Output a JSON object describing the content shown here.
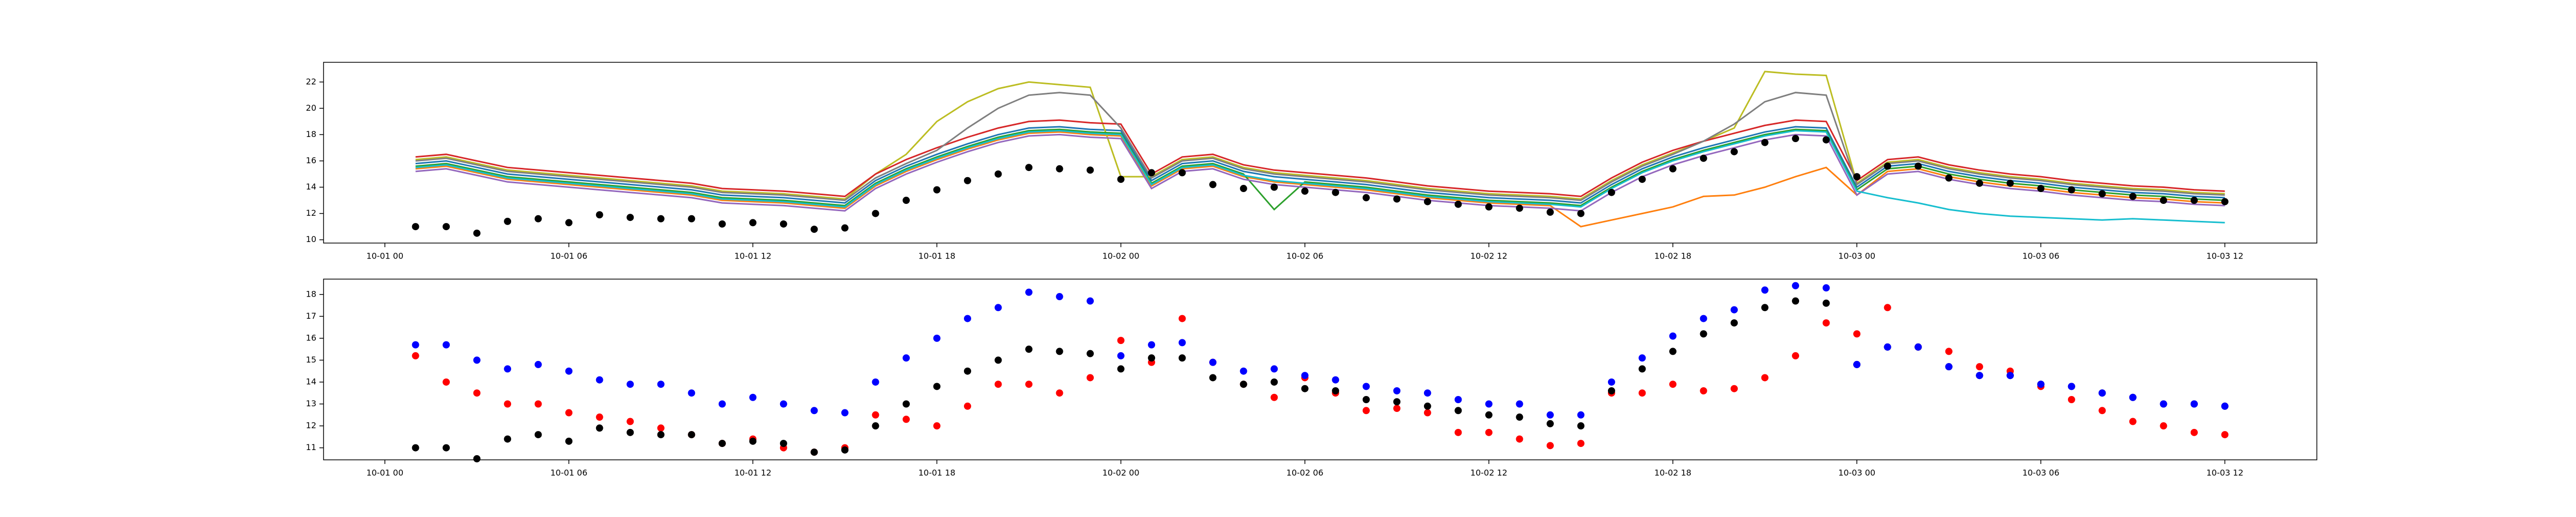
{
  "chart_data": [
    {
      "type": "line",
      "x": [
        "10-01 01",
        "10-01 02",
        "10-01 03",
        "10-01 04",
        "10-01 05",
        "10-01 06",
        "10-01 07",
        "10-01 08",
        "10-01 09",
        "10-01 10",
        "10-01 11",
        "10-01 12",
        "10-01 13",
        "10-01 14",
        "10-01 15",
        "10-01 16",
        "10-01 17",
        "10-01 18",
        "10-01 19",
        "10-01 20",
        "10-01 21",
        "10-01 22",
        "10-01 23",
        "10-02 00",
        "10-02 01",
        "10-02 02",
        "10-02 03",
        "10-02 04",
        "10-02 05",
        "10-02 06",
        "10-02 07",
        "10-02 08",
        "10-02 09",
        "10-02 10",
        "10-02 11",
        "10-02 12",
        "10-02 13",
        "10-02 14",
        "10-02 15",
        "10-02 16",
        "10-02 17",
        "10-02 18",
        "10-02 19",
        "10-02 20",
        "10-02 21",
        "10-02 22",
        "10-02 23",
        "10-03 00",
        "10-03 01",
        "10-03 02",
        "10-03 03",
        "10-03 04",
        "10-03 05",
        "10-03 06",
        "10-03 07",
        "10-03 08",
        "10-03 09",
        "10-03 10",
        "10-03 11",
        "10-03 12"
      ],
      "xlim": [
        "09-30 22",
        "10-03 15"
      ],
      "xticks": [
        "10-01 00",
        "10-01 06",
        "10-01 12",
        "10-01 18",
        "10-02 00",
        "10-02 06",
        "10-02 12",
        "10-02 18",
        "10-03 00",
        "10-03 06",
        "10-03 12"
      ],
      "ylim": [
        9.75,
        23.5
      ],
      "yticks": [
        10,
        12,
        14,
        16,
        18,
        20,
        22
      ],
      "series": [
        {
          "type": "line",
          "color": "#1f77b4",
          "values": [
            15.8,
            16.0,
            15.5,
            15.0,
            14.8,
            14.6,
            14.4,
            14.2,
            14.0,
            13.8,
            13.4,
            13.3,
            13.2,
            13.0,
            12.8,
            14.5,
            15.6,
            16.5,
            17.3,
            18.0,
            18.5,
            18.6,
            18.4,
            18.3,
            14.5,
            15.8,
            16.0,
            15.2,
            14.8,
            14.6,
            14.4,
            14.2,
            13.9,
            13.6,
            13.4,
            13.2,
            13.1,
            13.0,
            12.8,
            14.2,
            15.4,
            16.3,
            17.0,
            17.6,
            18.2,
            18.6,
            18.5,
            14.0,
            15.6,
            15.8,
            15.2,
            14.8,
            14.5,
            14.3,
            14.0,
            13.8,
            13.6,
            13.5,
            13.3,
            13.2
          ]
        },
        {
          "type": "line",
          "color": "#ff7f0e",
          "values": [
            15.4,
            15.6,
            15.1,
            14.6,
            14.4,
            14.2,
            14.0,
            13.8,
            13.6,
            13.4,
            13.0,
            12.9,
            12.8,
            12.6,
            12.4,
            14.1,
            15.2,
            16.1,
            16.9,
            17.6,
            18.1,
            18.2,
            18.0,
            17.9,
            14.1,
            15.4,
            15.6,
            14.8,
            14.4,
            14.2,
            14.0,
            13.8,
            13.5,
            13.2,
            13.0,
            12.8,
            12.7,
            12.6,
            11.0,
            11.5,
            12.0,
            12.5,
            13.3,
            13.4,
            14.0,
            14.8,
            15.5,
            13.4,
            15.2,
            15.4,
            14.8,
            14.4,
            14.1,
            13.9,
            13.6,
            13.4,
            13.2,
            13.1,
            12.9,
            12.8
          ]
        },
        {
          "type": "line",
          "color": "#bcbd22",
          "values": [
            16.1,
            16.3,
            15.8,
            15.3,
            15.1,
            14.9,
            14.7,
            14.5,
            14.3,
            14.1,
            13.7,
            13.6,
            13.5,
            13.3,
            13.1,
            15.0,
            16.5,
            19.0,
            20.5,
            21.5,
            22.0,
            21.8,
            21.6,
            14.8,
            14.8,
            16.1,
            16.3,
            15.5,
            15.1,
            14.9,
            14.7,
            14.5,
            14.2,
            13.9,
            13.7,
            13.5,
            13.4,
            13.3,
            13.1,
            14.5,
            15.7,
            16.6,
            17.5,
            18.5,
            22.8,
            22.6,
            22.5,
            14.3,
            15.9,
            16.1,
            15.5,
            15.1,
            14.8,
            14.6,
            14.3,
            14.1,
            13.9,
            13.8,
            13.6,
            13.5
          ]
        },
        {
          "type": "line",
          "color": "#2ca02c",
          "values": [
            15.6,
            15.8,
            15.3,
            14.8,
            14.6,
            14.4,
            14.2,
            14.0,
            13.8,
            13.6,
            13.2,
            13.1,
            13.0,
            12.8,
            12.6,
            14.3,
            15.4,
            16.3,
            17.1,
            17.8,
            18.3,
            18.4,
            18.2,
            18.1,
            14.3,
            15.6,
            15.8,
            15.0,
            12.3,
            14.4,
            14.2,
            14.0,
            13.7,
            13.4,
            13.2,
            13.0,
            12.9,
            12.8,
            12.6,
            14.0,
            15.2,
            16.1,
            16.8,
            17.4,
            18.0,
            18.4,
            18.3,
            13.8,
            15.4,
            15.6,
            15.0,
            14.6,
            14.3,
            14.1,
            13.8,
            13.6,
            13.4,
            13.3,
            13.1,
            13.0
          ]
        },
        {
          "type": "line",
          "color": "#d62728",
          "values": [
            16.3,
            16.5,
            16.0,
            15.5,
            15.3,
            15.1,
            14.9,
            14.7,
            14.5,
            14.3,
            13.9,
            13.8,
            13.7,
            13.5,
            13.3,
            15.0,
            16.1,
            17.0,
            17.8,
            18.5,
            19.0,
            19.1,
            18.9,
            18.8,
            15.0,
            16.3,
            16.5,
            15.7,
            15.3,
            15.1,
            14.9,
            14.7,
            14.4,
            14.1,
            13.9,
            13.7,
            13.6,
            13.5,
            13.3,
            14.7,
            15.9,
            16.8,
            17.5,
            18.1,
            18.7,
            19.1,
            19.0,
            14.5,
            16.1,
            16.3,
            15.7,
            15.3,
            15.0,
            14.8,
            14.5,
            14.3,
            14.1,
            14.0,
            13.8,
            13.7
          ]
        },
        {
          "type": "line",
          "color": "#9467bd",
          "values": [
            15.2,
            15.4,
            14.9,
            14.4,
            14.2,
            14.0,
            13.8,
            13.6,
            13.4,
            13.2,
            12.8,
            12.7,
            12.6,
            12.4,
            12.2,
            13.9,
            15.0,
            15.9,
            16.7,
            17.4,
            17.9,
            18.0,
            17.8,
            17.7,
            13.9,
            15.2,
            15.4,
            14.6,
            14.2,
            14.0,
            13.8,
            13.6,
            13.3,
            13.0,
            12.8,
            12.6,
            12.5,
            12.4,
            12.2,
            13.6,
            14.8,
            15.7,
            16.4,
            17.0,
            17.6,
            18.0,
            17.9,
            13.4,
            15.0,
            15.2,
            14.6,
            14.2,
            13.9,
            13.7,
            13.4,
            13.2,
            13.0,
            12.9,
            12.7,
            12.6
          ]
        },
        {
          "type": "line",
          "color": "#7f7f7f",
          "values": [
            16.0,
            16.2,
            15.7,
            15.2,
            15.0,
            14.8,
            14.6,
            14.4,
            14.2,
            14.0,
            13.6,
            13.5,
            13.4,
            13.2,
            13.0,
            14.7,
            15.8,
            16.8,
            18.5,
            20.0,
            21.0,
            21.2,
            21.0,
            18.5,
            14.7,
            16.0,
            16.2,
            15.4,
            15.0,
            14.8,
            14.6,
            14.4,
            14.1,
            13.8,
            13.6,
            13.4,
            13.3,
            13.2,
            13.0,
            14.4,
            15.6,
            16.5,
            17.5,
            18.8,
            20.5,
            21.2,
            21.0,
            14.2,
            15.8,
            16.0,
            15.4,
            15.0,
            14.7,
            14.5,
            14.2,
            14.0,
            13.8,
            13.7,
            13.5,
            13.4
          ]
        },
        {
          "type": "line",
          "color": "#17becf",
          "values": [
            15.5,
            15.7,
            15.2,
            14.7,
            14.5,
            14.3,
            14.1,
            13.9,
            13.7,
            13.5,
            13.1,
            13.0,
            12.9,
            12.7,
            12.5,
            14.2,
            15.3,
            16.2,
            17.0,
            17.7,
            18.2,
            18.3,
            18.1,
            18.0,
            14.2,
            15.5,
            15.7,
            14.9,
            14.5,
            14.3,
            14.1,
            13.9,
            13.6,
            13.3,
            13.1,
            12.9,
            12.8,
            12.7,
            12.5,
            13.9,
            15.1,
            16.0,
            16.7,
            17.3,
            17.9,
            18.3,
            18.2,
            13.7,
            13.2,
            12.8,
            12.3,
            12.0,
            11.8,
            11.7,
            11.6,
            11.5,
            11.6,
            11.5,
            11.4,
            11.3
          ]
        },
        {
          "type": "scatter",
          "color": "#000000",
          "values": [
            11.0,
            11.0,
            10.5,
            11.4,
            11.6,
            11.3,
            11.9,
            11.7,
            11.6,
            11.6,
            11.2,
            11.3,
            11.2,
            10.8,
            10.9,
            12.0,
            13.0,
            13.8,
            14.5,
            15.0,
            15.5,
            15.4,
            15.3,
            14.6,
            15.1,
            15.1,
            14.2,
            13.9,
            14.0,
            13.7,
            13.6,
            13.2,
            13.1,
            12.9,
            12.7,
            12.5,
            12.4,
            12.1,
            12.0,
            13.6,
            14.6,
            15.4,
            16.2,
            16.7,
            17.4,
            17.7,
            17.6,
            14.8,
            15.6,
            15.6,
            14.7,
            14.3,
            14.3,
            13.9,
            13.8,
            13.5,
            13.3,
            13.0,
            13.0,
            12.9
          ]
        }
      ]
    },
    {
      "type": "scatter",
      "x": [
        "10-01 01",
        "10-01 02",
        "10-01 03",
        "10-01 04",
        "10-01 05",
        "10-01 06",
        "10-01 07",
        "10-01 08",
        "10-01 09",
        "10-01 10",
        "10-01 11",
        "10-01 12",
        "10-01 13",
        "10-01 14",
        "10-01 15",
        "10-01 16",
        "10-01 17",
        "10-01 18",
        "10-01 19",
        "10-01 20",
        "10-01 21",
        "10-01 22",
        "10-01 23",
        "10-02 00",
        "10-02 01",
        "10-02 02",
        "10-02 03",
        "10-02 04",
        "10-02 05",
        "10-02 06",
        "10-02 07",
        "10-02 08",
        "10-02 09",
        "10-02 10",
        "10-02 11",
        "10-02 12",
        "10-02 13",
        "10-02 14",
        "10-02 15",
        "10-02 16",
        "10-02 17",
        "10-02 18",
        "10-02 19",
        "10-02 20",
        "10-02 21",
        "10-02 22",
        "10-02 23",
        "10-03 00",
        "10-03 01",
        "10-03 02",
        "10-03 03",
        "10-03 04",
        "10-03 05",
        "10-03 06",
        "10-03 07",
        "10-03 08",
        "10-03 09",
        "10-03 10",
        "10-03 11",
        "10-03 12"
      ],
      "xlim": [
        "09-30 22",
        "10-03 15"
      ],
      "xticks": [
        "10-01 00",
        "10-01 06",
        "10-01 12",
        "10-01 18",
        "10-02 00",
        "10-02 06",
        "10-02 12",
        "10-02 18",
        "10-03 00",
        "10-03 06",
        "10-03 12"
      ],
      "ylim": [
        10.45,
        18.7
      ],
      "yticks": [
        11,
        12,
        13,
        14,
        15,
        16,
        17,
        18
      ],
      "series": [
        {
          "type": "scatter",
          "color": "#ff0000",
          "values": [
            15.2,
            14.0,
            13.5,
            13.0,
            13.0,
            12.6,
            12.4,
            12.2,
            11.9,
            11.6,
            11.2,
            11.4,
            11.0,
            10.8,
            11.0,
            12.5,
            12.3,
            12.0,
            12.9,
            13.9,
            13.9,
            13.5,
            14.2,
            15.9,
            14.9,
            16.9,
            14.9,
            13.9,
            13.3,
            14.2,
            13.5,
            12.7,
            12.8,
            12.6,
            11.7,
            11.7,
            11.4,
            11.1,
            11.2,
            13.5,
            13.5,
            13.9,
            13.6,
            13.7,
            14.2,
            15.2,
            16.7,
            16.2,
            17.4,
            15.6,
            15.4,
            14.7,
            14.5,
            13.8,
            13.2,
            12.7,
            12.2,
            12.0,
            11.7,
            11.6
          ]
        },
        {
          "type": "scatter",
          "color": "#000000",
          "values": [
            11.0,
            11.0,
            10.5,
            11.4,
            11.6,
            11.3,
            11.9,
            11.7,
            11.6,
            11.6,
            11.2,
            11.3,
            11.2,
            10.8,
            10.9,
            12.0,
            13.0,
            13.8,
            14.5,
            15.0,
            15.5,
            15.4,
            15.3,
            14.6,
            15.1,
            15.1,
            14.2,
            13.9,
            14.0,
            13.7,
            13.6,
            13.2,
            13.1,
            12.9,
            12.7,
            12.5,
            12.4,
            12.1,
            12.0,
            13.6,
            14.6,
            15.4,
            16.2,
            16.7,
            17.4,
            17.7,
            17.6,
            14.8,
            15.6,
            15.6,
            14.7,
            14.3,
            14.3,
            13.9,
            13.8,
            13.5,
            13.3,
            13.0,
            13.0,
            12.9
          ]
        },
        {
          "type": "scatter",
          "color": "#0000ff",
          "values": [
            15.7,
            15.7,
            15.0,
            14.6,
            14.8,
            14.5,
            14.1,
            13.9,
            13.9,
            13.5,
            13.0,
            13.3,
            13.0,
            12.7,
            12.6,
            14.0,
            15.1,
            16.0,
            16.9,
            17.4,
            18.1,
            17.9,
            17.7,
            15.2,
            15.7,
            15.8,
            14.9,
            14.5,
            14.6,
            14.3,
            14.1,
            13.8,
            13.6,
            13.5,
            13.2,
            13.0,
            13.0,
            12.5,
            12.5,
            14.0,
            15.1,
            16.1,
            16.9,
            17.3,
            18.2,
            18.4,
            18.3,
            14.8,
            15.6,
            15.6,
            14.7,
            14.3,
            14.3,
            13.9,
            13.8,
            13.5,
            13.3,
            13.0,
            13.0,
            12.9
          ]
        }
      ]
    }
  ]
}
